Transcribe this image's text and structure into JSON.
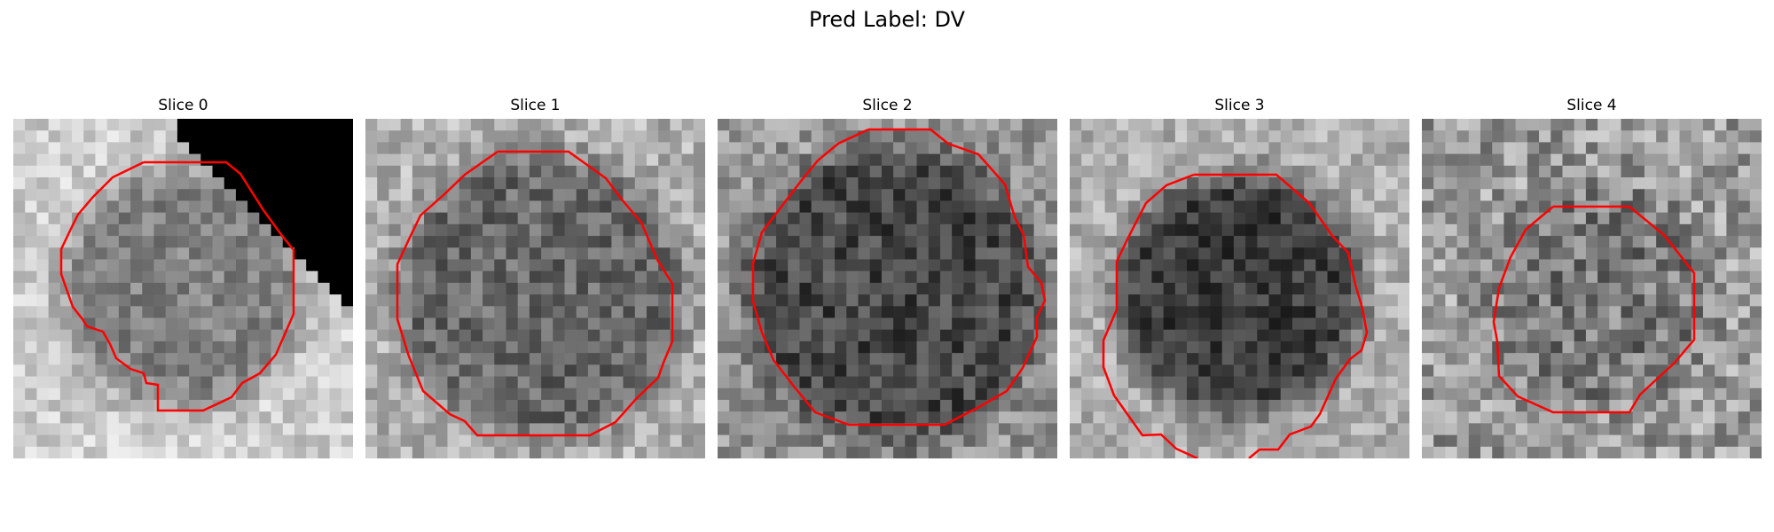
{
  "figure": {
    "title": "Pred Label: DV"
  },
  "panels": [
    {
      "title": "Slice 0",
      "texture": "occluded-bright-blob"
    },
    {
      "title": "Slice 1",
      "texture": "dark-disc"
    },
    {
      "title": "Slice 2",
      "texture": "darker-disc"
    },
    {
      "title": "Slice 3",
      "texture": "dark-disc-offset"
    },
    {
      "title": "Slice 4",
      "texture": "noisy-disc"
    }
  ],
  "colors": {
    "contour": "#ff0000",
    "background": "#ffffff",
    "text": "#000000"
  }
}
